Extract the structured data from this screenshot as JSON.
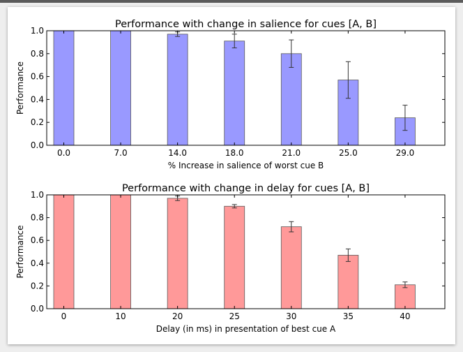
{
  "colors": {
    "top": "#9999ff",
    "bottom": "#ff9999",
    "frame": "#000000"
  },
  "chart_data": [
    {
      "type": "bar",
      "title": "Performance with change in salience for cues [A, B]",
      "xlabel": "% Increase in salience of worst cue B",
      "ylabel": "Performance",
      "categories": [
        "0.0",
        "7.0",
        "14.0",
        "18.0",
        "21.0",
        "25.0",
        "29.0"
      ],
      "values": [
        1.0,
        1.0,
        0.97,
        0.91,
        0.8,
        0.57,
        0.24
      ],
      "errors": [
        0.0,
        0.0,
        0.02,
        0.06,
        0.12,
        0.16,
        0.11
      ],
      "ylim": [
        0,
        1.0
      ],
      "yticks": [
        "0.0",
        "0.2",
        "0.4",
        "0.6",
        "0.8",
        "1.0"
      ],
      "grid": false,
      "color": "#9999ff"
    },
    {
      "type": "bar",
      "title": "Performance with change in delay for cues [A, B]",
      "xlabel": "Delay (in ms) in presentation of best cue A",
      "ylabel": "Performance",
      "categories": [
        "0",
        "10",
        "20",
        "25",
        "30",
        "35",
        "40"
      ],
      "values": [
        1.0,
        1.0,
        0.97,
        0.9,
        0.72,
        0.47,
        0.21
      ],
      "errors": [
        0.0,
        0.0,
        0.02,
        0.015,
        0.045,
        0.055,
        0.025
      ],
      "ylim": [
        0,
        1.0
      ],
      "yticks": [
        "0.0",
        "0.2",
        "0.4",
        "0.6",
        "0.8",
        "1.0"
      ],
      "grid": false,
      "color": "#ff9999"
    }
  ]
}
